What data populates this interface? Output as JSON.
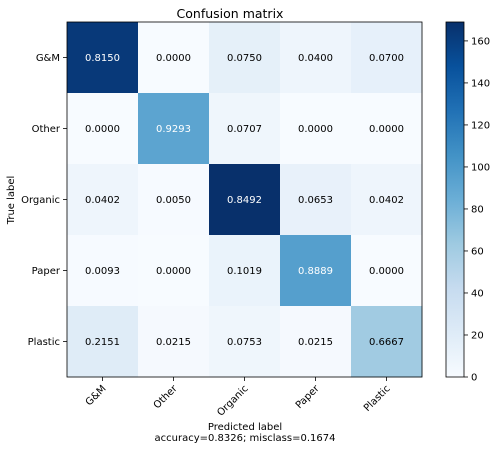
{
  "chart_data": {
    "type": "heatmap",
    "title": "Confusion matrix",
    "ylabel": "True label",
    "xlabel": "Predicted label",
    "xlabel_sub": "accuracy=0.8326; misclass=0.1674",
    "categories": [
      "G&M",
      "Other",
      "Organic",
      "Paper",
      "Plastic"
    ],
    "values": [
      [
        "0.8150",
        "0.0000",
        "0.0750",
        "0.0400",
        "0.0700"
      ],
      [
        "0.0000",
        "0.9293",
        "0.0707",
        "0.0000",
        "0.0000"
      ],
      [
        "0.0402",
        "0.0050",
        "0.8492",
        "0.0653",
        "0.0402"
      ],
      [
        "0.0093",
        "0.0000",
        "0.1019",
        "0.8889",
        "0.0000"
      ],
      [
        "0.2151",
        "0.0215",
        "0.0753",
        "0.0215",
        "0.6667"
      ]
    ],
    "counts": [
      [
        163,
        0,
        15,
        8,
        14
      ],
      [
        0,
        92,
        7,
        0,
        0
      ],
      [
        8,
        1,
        169,
        13,
        8
      ],
      [
        1,
        0,
        11,
        96,
        0
      ],
      [
        20,
        2,
        7,
        2,
        62
      ]
    ],
    "colorbar": {
      "min": 0,
      "max": 169,
      "ticks": [
        0,
        20,
        40,
        60,
        80,
        100,
        120,
        140,
        160
      ],
      "colormap": "Blues"
    }
  }
}
